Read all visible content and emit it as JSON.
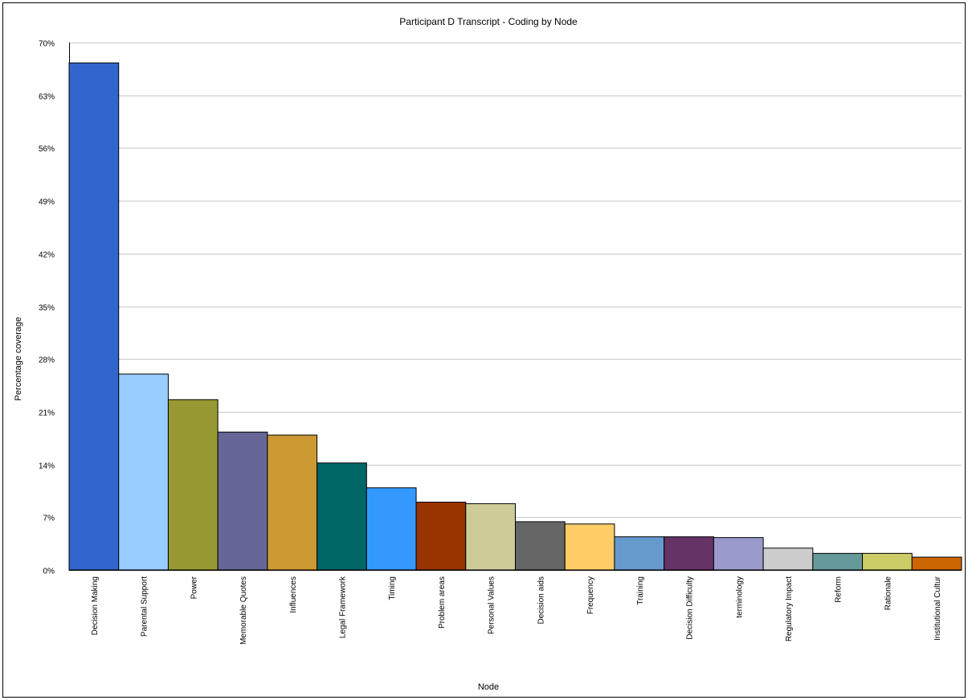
{
  "chart_data": {
    "type": "bar",
    "title": "Participant D Transcript - Coding by Node",
    "xlabel": "Node",
    "ylabel": "Percentage coverage",
    "ylim": [
      0,
      70
    ],
    "yticks": [
      0,
      7,
      14,
      21,
      28,
      35,
      42,
      49,
      56,
      63,
      70
    ],
    "ytick_labels": [
      "0%",
      "7%",
      "14%",
      "21%",
      "28%",
      "35%",
      "42%",
      "49%",
      "56%",
      "63%",
      "70%"
    ],
    "grid": true,
    "legend": "none",
    "categories": [
      "Decision Making",
      "Parental Support",
      "Power",
      "Memorable Quotes",
      "Influences",
      "Legal Framework",
      "Timing",
      "Problem areas",
      "Personal Values",
      "Decision aids",
      "Frequency",
      "Training",
      "Decision Difficulty",
      "terminology",
      "Regulatory Impact",
      "Reform",
      "Rationale",
      "Institutional Cultur"
    ],
    "values": [
      67.3,
      26.0,
      22.6,
      18.3,
      17.9,
      14.2,
      10.9,
      9.0,
      8.8,
      6.4,
      6.1,
      4.4,
      4.4,
      4.3,
      2.9,
      2.2,
      2.2,
      1.7
    ],
    "colors": [
      "#3366CC",
      "#99CCFF",
      "#999933",
      "#666699",
      "#CC9933",
      "#006666",
      "#3399FF",
      "#993300",
      "#CCCC99",
      "#666666",
      "#FFCC66",
      "#6699CC",
      "#663366",
      "#9999CC",
      "#CCCCCC",
      "#669999",
      "#CCCC66",
      "#CC6600"
    ]
  }
}
